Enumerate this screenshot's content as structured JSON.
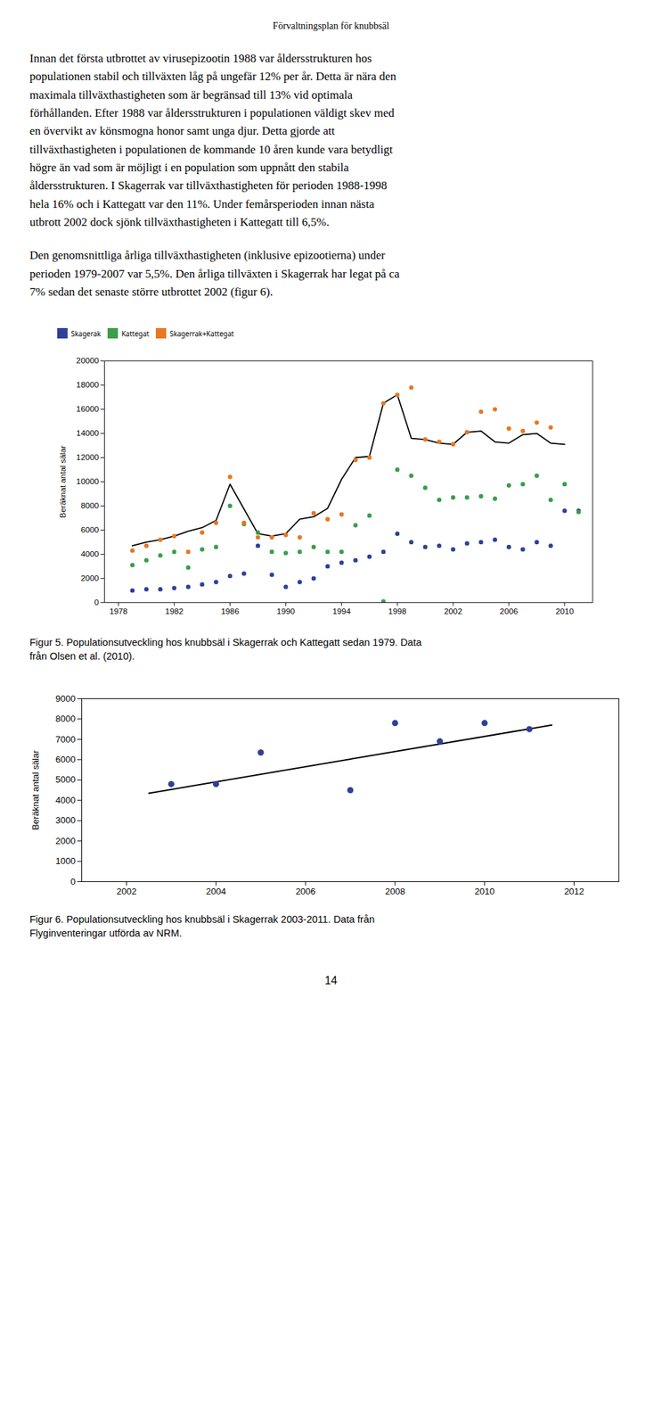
{
  "title": "Förvaltningsplan för knubbsäl",
  "text": [
    [
      "Innan det första utbrottet av virusepizootin 1988 var åldersstrukturen hos",
      "populationen stabil och tillväxten låg på ungefär 12% per år. Detta är nära den",
      "maximala tillväxthastigheten som är begränsad till 13% vid optimala",
      "förhållanden. Efter 1988 var åldersstrukturen i populationen väldigt skev med",
      "en övervikt av könsmogna honor samt unga djur. Detta gjorde att",
      "tillväxthastigheten i populationen de kommande 10 åren kunde vara betydligt",
      "högre än vad som är möjligt i en population som uppnått den stabila",
      "åldersstrukturen. I Skagerrak var tillväxthastigheten för perioden 1988-1998",
      "hela 16% och i Kattegatt var den 11%. Under femårsperioden innan nästa",
      "utbrott 2002 dock sjönk tillväxthastigheten i Kattegatt till 6,5%."
    ],
    [
      "Den genomsnittliga årliga tillväxthastigheten (inklusive epizootierna) under",
      "perioden 1979-2007 var 5,5%. Den årliga tillväxten i Skagerrak har legat på ca",
      "7% sedan det senaste större utbrottet 2002 (figur 6)."
    ]
  ],
  "chart_data": [
    {
      "type": "scatter",
      "ylabel": "Beräknat antal sälar",
      "xlim": [
        1977,
        2012
      ],
      "xticks": [
        1978,
        1982,
        1986,
        1990,
        1994,
        1998,
        2002,
        2006,
        2010
      ],
      "ylim": [
        0,
        20000
      ],
      "yticks": [
        0,
        2000,
        4000,
        6000,
        8000,
        10000,
        12000,
        14000,
        16000,
        18000,
        20000
      ],
      "legend": "upper left",
      "series": [
        {
          "name": "Skagerak",
          "type": "scatter",
          "color": "#2E4099",
          "x": [
            1979,
            1980,
            1981,
            1982,
            1983,
            1984,
            1985,
            1986,
            1987,
            1988,
            1989,
            1990,
            1991,
            1992,
            1993,
            1994,
            1995,
            1996,
            1997,
            1998,
            1999,
            2000,
            2001,
            2002,
            2003,
            2004,
            2005,
            2006,
            2007,
            2008,
            2009,
            2010,
            2011
          ],
          "values": [
            1000,
            1100,
            1100,
            1200,
            1300,
            1500,
            1700,
            2200,
            2400,
            4700,
            2300,
            1300,
            1700,
            2000,
            3000,
            3300,
            3500,
            3800,
            4200,
            5700,
            5000,
            4600,
            4700,
            4400,
            4900,
            5000,
            5200,
            4600,
            4400,
            5000,
            4700,
            7600,
            7600
          ]
        },
        {
          "name": "Kattegat",
          "type": "scatter",
          "color": "#3A9E4A",
          "x": [
            1979,
            1980,
            1981,
            1982,
            1983,
            1984,
            1985,
            1986,
            1987,
            1988,
            1989,
            1990,
            1991,
            1992,
            1993,
            1994,
            1995,
            1996,
            1997,
            1998,
            1999,
            2000,
            2001,
            2002,
            2003,
            2004,
            2005,
            2006,
            2007,
            2008,
            2009,
            2010,
            2011
          ],
          "values": [
            3100,
            3500,
            3900,
            4200,
            2900,
            4400,
            4600,
            8000,
            6500,
            5800,
            4200,
            4100,
            4200,
            4600,
            4200,
            4200,
            6400,
            7200,
            100,
            11000,
            10500,
            9500,
            8500,
            8700,
            8700,
            8800,
            8600,
            9700,
            9800,
            10500,
            8500,
            9800,
            7500
          ]
        },
        {
          "name": "Skagerrak+Kattegat",
          "type": "scatter",
          "color": "#E87722",
          "x": [
            1979,
            1980,
            1981,
            1982,
            1983,
            1984,
            1985,
            1986,
            1987,
            1988,
            1989,
            1990,
            1991,
            1992,
            1993,
            1994,
            1995,
            1996,
            1997,
            1998,
            1999,
            2000,
            2001,
            2002,
            2003,
            2004,
            2005,
            2006,
            2007,
            2008,
            2009
          ],
          "values": [
            4300,
            4700,
            5200,
            5500,
            4200,
            5800,
            6600,
            10400,
            6600,
            5400,
            5400,
            5600,
            5400,
            7400,
            6900,
            7300,
            11800,
            12000,
            16500,
            17200,
            17800,
            13500,
            13300,
            13100,
            14100,
            15800,
            16000,
            14400,
            14200,
            14900,
            14500
          ]
        },
        {
          "type": "line",
          "color": "black",
          "x": [
            1979,
            1980,
            1981,
            1982,
            1983,
            1984,
            1985,
            1986,
            1988,
            1989,
            1990,
            1991,
            1992,
            1993,
            1994,
            1995,
            1996,
            1997,
            1998,
            1999,
            2000,
            2001,
            2002,
            2003,
            2004,
            2005,
            2006,
            2007,
            2008,
            2009,
            2010
          ],
          "values": [
            4700,
            5000,
            5200,
            5500,
            5900,
            6200,
            6800,
            9800,
            5700,
            5500,
            5700,
            6900,
            7100,
            7800,
            10200,
            12000,
            12100,
            16500,
            17200,
            13600,
            13500,
            13200,
            13100,
            14100,
            14200,
            13300,
            13200,
            13900,
            14000,
            13200,
            13100
          ]
        }
      ],
      "caption": [
        "Figur 5. Populationsutveckling hos knubbsäl i Skagerrak och Kattegatt sedan 1979. Data",
        "från Olsen et al. (2010)."
      ]
    },
    {
      "type": "scatter",
      "ylabel": "Beräknat antal sälar",
      "xlim": [
        2001,
        2013
      ],
      "xticks": [
        2002,
        2004,
        2006,
        2008,
        2010,
        2012
      ],
      "ylim": [
        0,
        9000
      ],
      "yticks": [
        0,
        1000,
        2000,
        3000,
        4000,
        5000,
        6000,
        7000,
        8000,
        9000
      ],
      "series": [
        {
          "type": "scatter",
          "color": "#2E4099",
          "x": [
            2003,
            2004,
            2005,
            2007,
            2008,
            2009,
            2010,
            2011
          ],
          "values": [
            4800,
            4800,
            6350,
            4500,
            7800,
            6900,
            7800,
            7500
          ]
        },
        {
          "type": "line",
          "color": "black",
          "x": [
            2002.5,
            2011.5
          ],
          "values": [
            4350,
            7700
          ]
        }
      ],
      "caption": [
        "Figur 6. Populationsutveckling hos knubbsäl i Skagerrak 2003-2011. Data från",
        "Flyginventeringar utförda av NRM."
      ]
    }
  ],
  "page_number": "14"
}
